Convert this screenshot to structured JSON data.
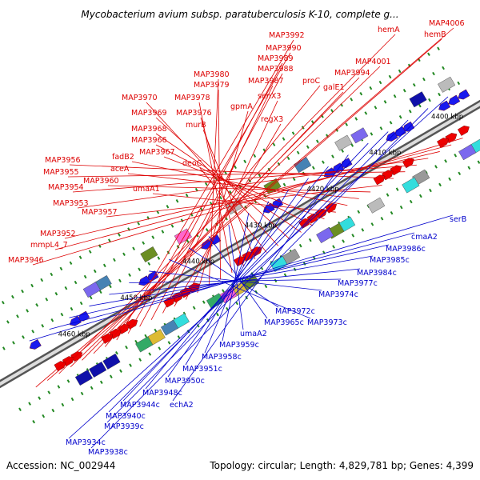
{
  "title": "Mycobacterium avium subsp. paratuberculosis K-10, complete g...",
  "footer": {
    "accession": "Accession: NC_002944",
    "stats": "Topology: circular; Length: 4,829,781 bp; Genes: 4,399"
  },
  "colors": {
    "forward_label": "#dd0000",
    "reverse_label": "#0000cc",
    "backbone": "#888888",
    "tick_marks": "#228822"
  },
  "scale_labels": [
    "4400 kbp",
    "4410 kbp",
    "4420 kbp",
    "4430 kbp",
    "4440 kbp",
    "4450 kbp",
    "4460 kbp"
  ],
  "forward_genes": [
    "MAP3946",
    "mmpL4_7",
    "MAP3952",
    "MAP3953",
    "MAP3954",
    "MAP3955",
    "MAP3956",
    "MAP3957",
    "MAP3960",
    "aceA",
    "fadB2",
    "umaA1",
    "MAP3967",
    "MAP3966",
    "MAP3968",
    "MAP3969",
    "MAP3970",
    "deoC",
    "murB",
    "MAP3976",
    "MAP3978",
    "MAP3979",
    "MAP3980",
    "gpmA",
    "senX3",
    "regX3",
    "MAP3987",
    "MAP3988",
    "MAP3989",
    "MAP3990",
    "MAP3992",
    "proC",
    "galE1",
    "MAP3994",
    "MAP4001",
    "hemA",
    "hemB",
    "MAP4006"
  ],
  "reverse_genes": [
    "MAP3934c",
    "MAP3938c",
    "MAP3939c",
    "MAP3940c",
    "MAP3944c",
    "echA2",
    "MAP3948c",
    "MAP3950c",
    "MAP3951c",
    "MAP3958c",
    "MAP3959c",
    "umaA2",
    "MAP3965c",
    "MAP3972c",
    "MAP3973c",
    "MAP3974c",
    "MAP3977c",
    "MAP3984c",
    "MAP3985c",
    "MAP3986c",
    "cmaA2",
    "serB"
  ]
}
